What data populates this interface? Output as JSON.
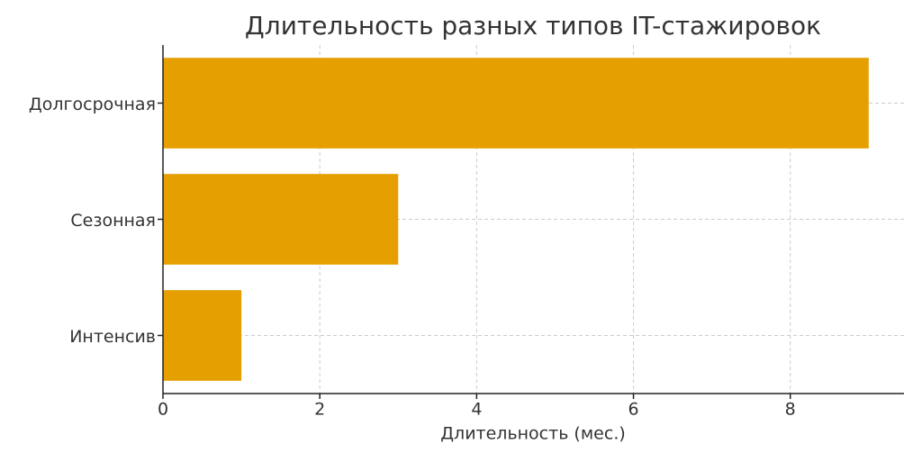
{
  "chart_data": {
    "type": "barh",
    "title": "Длительность разных типов IT-стажировок",
    "xlabel": "Длительность (мес.)",
    "categories": [
      "Долгосрочная",
      "Сезонная",
      "Интенсив"
    ],
    "values": [
      9,
      3,
      1
    ],
    "color": "#e69f00",
    "xlim": [
      0,
      9.45
    ],
    "xticks": [
      0,
      2,
      4,
      6,
      8
    ],
    "grid": true
  }
}
